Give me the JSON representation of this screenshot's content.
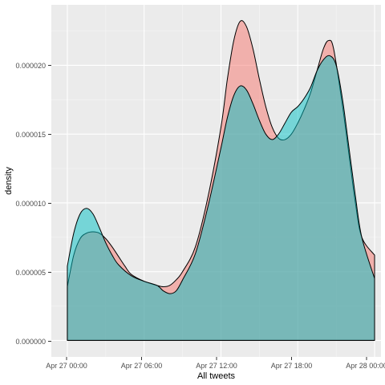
{
  "chart_data": {
    "type": "area",
    "xlabel": "All tweets",
    "ylabel": "density",
    "x_ticks": [
      "Apr 27 00:00",
      "Apr 27 06:00",
      "Apr 27 12:00",
      "Apr 27 18:00",
      "Apr 28 00:00"
    ],
    "x_tick_hours": [
      0,
      6,
      12,
      18,
      24
    ],
    "y_ticks": [
      "0.000000",
      "0.000005",
      "0.000010",
      "0.000015",
      "0.000020"
    ],
    "y_tick_values": [
      0,
      5e-06,
      1e-05,
      1.5e-05,
      2e-05
    ],
    "xlim_hours": [
      -1.25,
      24.5
    ],
    "ylim": [
      -1.2e-06,
      2.44e-05
    ],
    "grid": true,
    "series": [
      {
        "color": "#F8766D",
        "points": [
          [
            0,
            3.9e-06
          ],
          [
            0.5,
            6.2e-06
          ],
          [
            1,
            7.4e-06
          ],
          [
            1.5,
            7.8e-06
          ],
          [
            2,
            7.9e-06
          ],
          [
            2.5,
            7.8e-06
          ],
          [
            3,
            7.4e-06
          ],
          [
            3.5,
            6.8e-06
          ],
          [
            4,
            6.1e-06
          ],
          [
            4.5,
            5.4e-06
          ],
          [
            5,
            4.8e-06
          ],
          [
            6,
            4.3e-06
          ],
          [
            7,
            4e-06
          ],
          [
            7.5,
            3.9e-06
          ],
          [
            8,
            4e-06
          ],
          [
            8.5,
            4.4e-06
          ],
          [
            9,
            5e-06
          ],
          [
            10,
            6.8e-06
          ],
          [
            11,
            1.05e-05
          ],
          [
            12,
            1.55e-05
          ],
          [
            12.5,
            1.9e-05
          ],
          [
            13,
            2.18e-05
          ],
          [
            13.5,
            2.32e-05
          ],
          [
            14,
            2.28e-05
          ],
          [
            14.5,
            2.12e-05
          ],
          [
            15,
            1.9e-05
          ],
          [
            15.5,
            1.7e-05
          ],
          [
            16,
            1.55e-05
          ],
          [
            16.5,
            1.47e-05
          ],
          [
            17,
            1.46e-05
          ],
          [
            17.5,
            1.5e-05
          ],
          [
            18,
            1.58e-05
          ],
          [
            18.5,
            1.68e-05
          ],
          [
            19,
            1.8e-05
          ],
          [
            19.5,
            1.96e-05
          ],
          [
            20,
            2.12e-05
          ],
          [
            20.4,
            2.18e-05
          ],
          [
            20.8,
            2.12e-05
          ],
          [
            21.5,
            1.7e-05
          ],
          [
            22,
            1.35e-05
          ],
          [
            22.5,
            1e-05
          ],
          [
            23,
            7.5e-06
          ],
          [
            24,
            6.2e-06
          ]
        ]
      },
      {
        "color": "#00BFC4",
        "points": [
          [
            0,
            5.4e-06
          ],
          [
            0.5,
            7.8e-06
          ],
          [
            1,
            9.2e-06
          ],
          [
            1.5,
            9.6e-06
          ],
          [
            2,
            9.2e-06
          ],
          [
            2.5,
            8.2e-06
          ],
          [
            3,
            7.1e-06
          ],
          [
            3.5,
            6.2e-06
          ],
          [
            4,
            5.5e-06
          ],
          [
            5,
            4.7e-06
          ],
          [
            6,
            4.3e-06
          ],
          [
            7,
            4e-06
          ],
          [
            7.5,
            3.6e-06
          ],
          [
            8,
            3.4e-06
          ],
          [
            8.5,
            3.6e-06
          ],
          [
            9,
            4.4e-06
          ],
          [
            10,
            6.3e-06
          ],
          [
            11,
            9.8e-06
          ],
          [
            12,
            1.4e-05
          ],
          [
            12.5,
            1.62e-05
          ],
          [
            13,
            1.78e-05
          ],
          [
            13.5,
            1.85e-05
          ],
          [
            14,
            1.82e-05
          ],
          [
            14.5,
            1.72e-05
          ],
          [
            15,
            1.6e-05
          ],
          [
            15.5,
            1.5e-05
          ],
          [
            16,
            1.46e-05
          ],
          [
            16.5,
            1.5e-05
          ],
          [
            17,
            1.58e-05
          ],
          [
            17.5,
            1.66e-05
          ],
          [
            18,
            1.7e-05
          ],
          [
            18.5,
            1.76e-05
          ],
          [
            19,
            1.84e-05
          ],
          [
            19.5,
            1.96e-05
          ],
          [
            20,
            2.04e-05
          ],
          [
            20.5,
            2.07e-05
          ],
          [
            21,
            2e-05
          ],
          [
            21.5,
            1.75e-05
          ],
          [
            22,
            1.4e-05
          ],
          [
            22.5,
            1.05e-05
          ],
          [
            23,
            7.5e-06
          ],
          [
            24,
            4.5e-06
          ]
        ]
      }
    ]
  }
}
